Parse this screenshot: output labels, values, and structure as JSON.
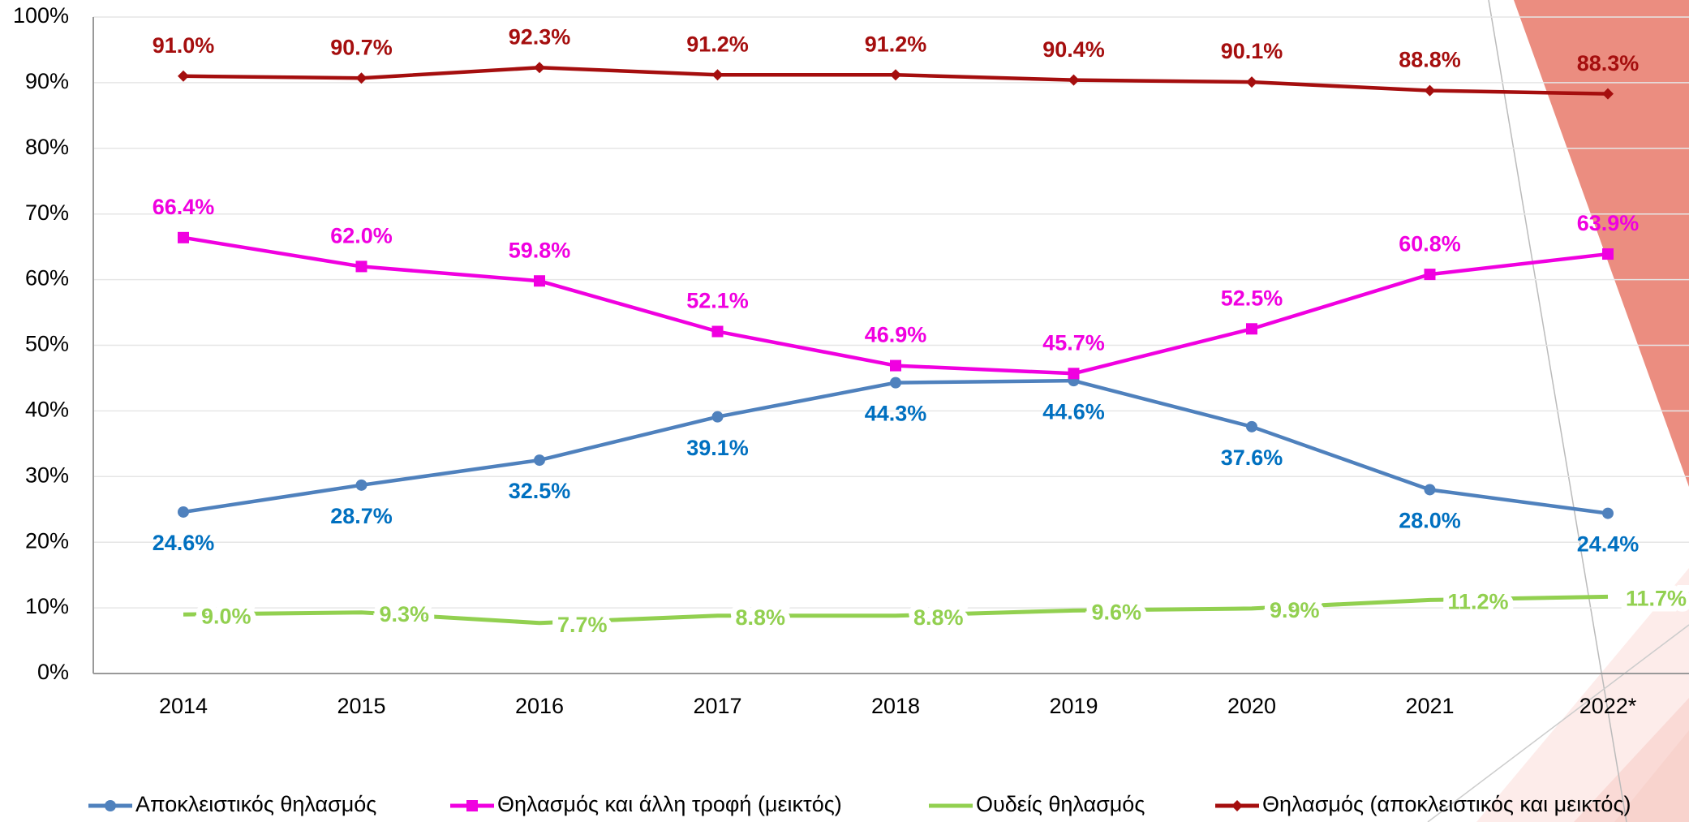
{
  "chart_data": {
    "type": "line",
    "categories": [
      "2014",
      "2015",
      "2016",
      "2017",
      "2018",
      "2019",
      "2020",
      "2021",
      "2022*"
    ],
    "series": [
      {
        "name": "Αποκλειστικός θηλασμός",
        "color": "#4f81bd",
        "label_color": "#0070c0",
        "marker": "circle",
        "values": [
          24.6,
          28.7,
          32.5,
          39.1,
          44.3,
          44.6,
          37.6,
          28.0,
          24.4
        ],
        "value_labels": [
          "24.6%",
          "28.7%",
          "32.5%",
          "39.1%",
          "44.3%",
          "44.6%",
          "37.6%",
          "28.0%",
          "24.4%"
        ]
      },
      {
        "name": "Θηλασμός και άλλη τροφή (μεικτός)",
        "color": "#f000e0",
        "label_color": "#f000e0",
        "marker": "square",
        "values": [
          66.4,
          62.0,
          59.8,
          52.1,
          46.9,
          45.7,
          52.5,
          60.8,
          63.9
        ],
        "value_labels": [
          "66.4%",
          "62.0%",
          "59.8%",
          "52.1%",
          "46.9%",
          "45.7%",
          "52.5%",
          "60.8%",
          "63.9%"
        ]
      },
      {
        "name": "Ουδείς θηλασμός",
        "color": "#92d050",
        "label_color": "#92d050",
        "marker": "none",
        "values": [
          9.0,
          9.3,
          7.7,
          8.8,
          8.8,
          9.6,
          9.9,
          11.2,
          11.7
        ],
        "value_labels": [
          "9.0%",
          "9.3%",
          "7.7%",
          "8.8%",
          "8.8%",
          "9.6%",
          "9.9%",
          "11.2%",
          "11.7%"
        ]
      },
      {
        "name": "Θηλασμός (αποκλειστικός και μεικτός)",
        "color": "#a50e0e",
        "label_color": "#a50e0e",
        "marker": "diamond",
        "values": [
          91.0,
          90.7,
          92.3,
          91.2,
          91.2,
          90.4,
          90.1,
          88.8,
          88.3
        ],
        "value_labels": [
          "91.0%",
          "90.7%",
          "92.3%",
          "91.2%",
          "91.2%",
          "90.4%",
          "90.1%",
          "88.8%",
          "88.3%"
        ]
      }
    ],
    "ylim": [
      0,
      100
    ],
    "yticks": [
      {
        "value": 0,
        "label": "0%"
      },
      {
        "value": 10,
        "label": "10%"
      },
      {
        "value": 20,
        "label": "20%"
      },
      {
        "value": 30,
        "label": "30%"
      },
      {
        "value": 40,
        "label": "40%"
      },
      {
        "value": 50,
        "label": "50%"
      },
      {
        "value": 60,
        "label": "60%"
      },
      {
        "value": 70,
        "label": "70%"
      },
      {
        "value": 80,
        "label": "80%"
      },
      {
        "value": 90,
        "label": "90%"
      },
      {
        "value": 100,
        "label": "100%"
      }
    ],
    "grid": true,
    "legend": "bottom"
  }
}
